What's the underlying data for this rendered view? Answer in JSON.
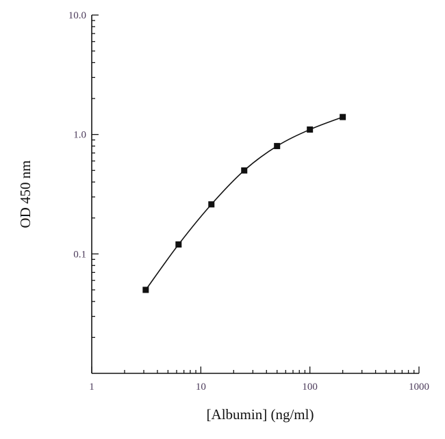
{
  "chart_data": {
    "type": "line",
    "title": "",
    "xlabel": "[Albumin] (ng/ml)",
    "ylabel": "OD 450 nm",
    "xscale": "log",
    "yscale": "log",
    "xlim": [
      1,
      1000
    ],
    "ylim": [
      0.01,
      10
    ],
    "x_ticks": [
      {
        "value": 1,
        "label": "1"
      },
      {
        "value": 10,
        "label": "10"
      },
      {
        "value": 100,
        "label": "100"
      },
      {
        "value": 1000,
        "label": "1000"
      }
    ],
    "y_ticks": [
      {
        "value": 0.1,
        "label": "0.1"
      },
      {
        "value": 1,
        "label": "1.0"
      },
      {
        "value": 10,
        "label": "10.0"
      }
    ],
    "grid": false,
    "series": [
      {
        "marker": "square",
        "color": "#111111",
        "x": [
          3.125,
          6.25,
          12.5,
          25,
          50,
          100,
          200
        ],
        "y": [
          0.05,
          0.12,
          0.26,
          0.5,
          0.8,
          1.1,
          1.4
        ]
      }
    ]
  }
}
